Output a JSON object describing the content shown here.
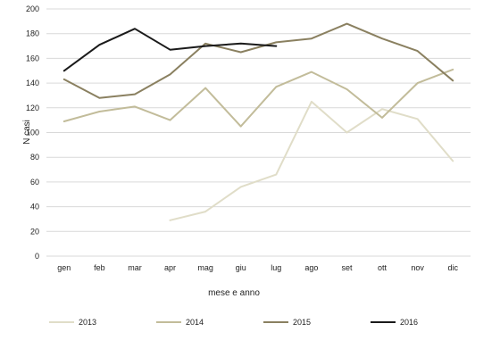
{
  "chart_data": {
    "type": "line",
    "title": "",
    "xlabel": "mese e anno",
    "ylabel": "N casi",
    "categories": [
      "gen",
      "feb",
      "mar",
      "apr",
      "mag",
      "giu",
      "lug",
      "ago",
      "set",
      "ott",
      "nov",
      "dic"
    ],
    "ylim": [
      0,
      200
    ],
    "yticks": [
      0,
      20,
      40,
      60,
      80,
      100,
      120,
      140,
      160,
      180,
      200
    ],
    "grid": "horizontal",
    "legend_position": "bottom",
    "series": [
      {
        "name": "2013",
        "color": "#e0ddc8",
        "values": [
          null,
          null,
          null,
          29,
          36,
          56,
          66,
          125,
          100,
          119,
          111,
          77
        ]
      },
      {
        "name": "2014",
        "color": "#c2bc9a",
        "values": [
          109,
          117,
          121,
          110,
          136,
          105,
          137,
          149,
          135,
          112,
          140,
          151
        ]
      },
      {
        "name": "2015",
        "color": "#8a8060",
        "values": [
          143,
          128,
          131,
          147,
          172,
          165,
          173,
          176,
          188,
          176,
          166,
          142
        ]
      },
      {
        "name": "2016",
        "color": "#1a1a1a",
        "values": [
          150,
          171,
          184,
          167,
          170,
          172,
          170,
          null,
          null,
          null,
          null,
          null
        ]
      }
    ]
  }
}
